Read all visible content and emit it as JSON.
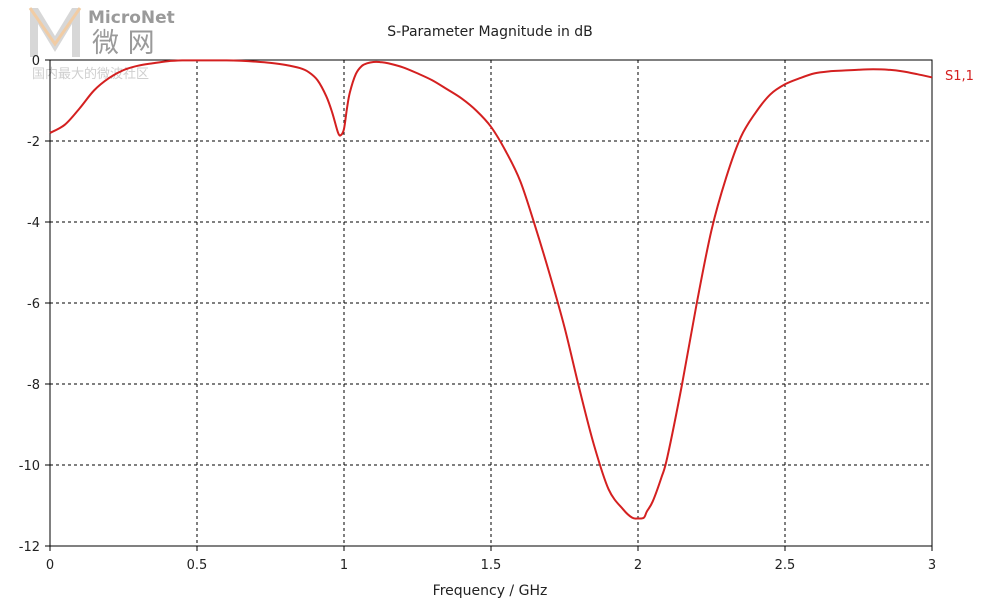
{
  "watermark": {
    "brand": "MicroNet",
    "brand_cn": "微 网",
    "tagline": "国内最大的微波社区"
  },
  "chart_data": {
    "type": "line",
    "title": "S-Parameter Magnitude in dB",
    "xlabel": "Frequency / GHz",
    "ylabel": "",
    "xlim": [
      0,
      3
    ],
    "ylim": [
      -12,
      0
    ],
    "xticks": [
      "0",
      "0.5",
      "1",
      "1.5",
      "2",
      "2.5",
      "3"
    ],
    "yticks": [
      "0",
      "-2",
      "-4",
      "-6",
      "-8",
      "-10",
      "-12"
    ],
    "grid": true,
    "series": [
      {
        "name": "S1,1",
        "color": "#d42020",
        "x": [
          0,
          0.05,
          0.1,
          0.15,
          0.2,
          0.25,
          0.3,
          0.35,
          0.4,
          0.45,
          0.5,
          0.55,
          0.6,
          0.65,
          0.7,
          0.75,
          0.8,
          0.85,
          0.88,
          0.91,
          0.94,
          0.96,
          0.98,
          0.99,
          1.0,
          1.01,
          1.02,
          1.04,
          1.06,
          1.08,
          1.1,
          1.12,
          1.15,
          1.2,
          1.25,
          1.3,
          1.35,
          1.4,
          1.45,
          1.5,
          1.55,
          1.6,
          1.65,
          1.7,
          1.75,
          1.8,
          1.85,
          1.9,
          1.95,
          1.98,
          2.0,
          2.02,
          2.03,
          2.05,
          2.08,
          2.1,
          2.15,
          2.2,
          2.25,
          2.3,
          2.35,
          2.4,
          2.45,
          2.5,
          2.55,
          2.6,
          2.65,
          2.7,
          2.75,
          2.8,
          2.85,
          2.9,
          2.95,
          3.0
        ],
        "y": [
          -1.8,
          -1.6,
          -1.2,
          -0.75,
          -0.45,
          -0.25,
          -0.14,
          -0.08,
          -0.03,
          -0.01,
          -0.01,
          -0.01,
          -0.01,
          -0.02,
          -0.04,
          -0.07,
          -0.12,
          -0.2,
          -0.3,
          -0.5,
          -0.9,
          -1.3,
          -1.8,
          -1.85,
          -1.7,
          -1.2,
          -0.8,
          -0.35,
          -0.15,
          -0.08,
          -0.05,
          -0.05,
          -0.08,
          -0.18,
          -0.33,
          -0.5,
          -0.72,
          -0.95,
          -1.25,
          -1.65,
          -2.25,
          -3.0,
          -4.1,
          -5.3,
          -6.6,
          -8.1,
          -9.5,
          -10.6,
          -11.1,
          -11.3,
          -11.32,
          -11.3,
          -11.15,
          -10.9,
          -10.3,
          -9.8,
          -8.0,
          -6.0,
          -4.2,
          -2.9,
          -1.9,
          -1.3,
          -0.85,
          -0.6,
          -0.45,
          -0.33,
          -0.28,
          -0.26,
          -0.24,
          -0.23,
          -0.24,
          -0.28,
          -0.35,
          -0.43
        ]
      }
    ]
  }
}
